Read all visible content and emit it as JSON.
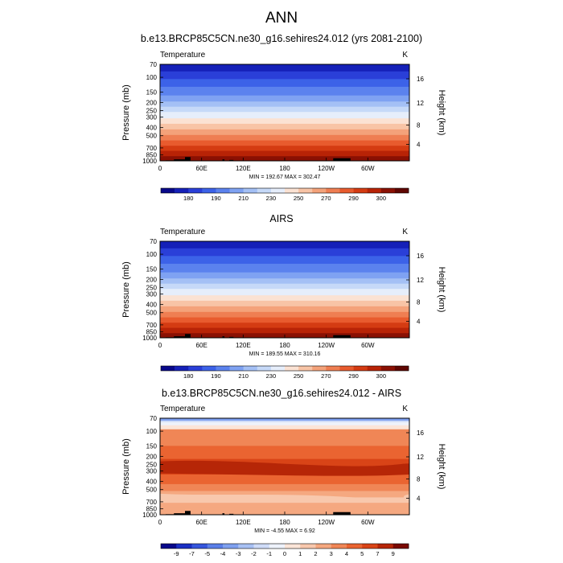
{
  "figure": {
    "main_title": "ANN"
  },
  "chart_data": [
    {
      "type": "heatmap",
      "title": "b.e13.BRCP85C5CN.ne30_g16.sehires24.012 (yrs 2081-2100)",
      "variable_label": "Temperature",
      "units": "K",
      "ylabel": "Pressure (mb)",
      "ylabel_right": "Height (km)",
      "pressure_ticks": [
        "70",
        "100",
        "150",
        "200",
        "250",
        "300",
        "400",
        "500",
        "700",
        "850",
        "1000"
      ],
      "pressure_values": [
        70,
        100,
        150,
        200,
        250,
        300,
        400,
        500,
        700,
        850,
        1000
      ],
      "height_ticks": [
        "16",
        "12",
        "8",
        "4"
      ],
      "x_ticks": [
        "0",
        "60E",
        "120E",
        "180",
        "120W",
        "60W"
      ],
      "x_values": [
        0,
        60,
        120,
        180,
        240,
        300
      ],
      "xlim": [
        0,
        360
      ],
      "ylim": [
        1000,
        70
      ],
      "stats": "MIN = 192.67  MAX = 302.47",
      "colorbar": {
        "labels": [
          "180",
          "190",
          "210",
          "230",
          "250",
          "270",
          "290",
          "300"
        ],
        "colors": [
          "#08088a",
          "#1520b8",
          "#2a3fd8",
          "#3c62e8",
          "#5b82ee",
          "#7fa2f2",
          "#a4c0f5",
          "#c6d9f8",
          "#e6eefb",
          "#fbe2d3",
          "#f8c4a6",
          "#f4a27a",
          "#ef7e52",
          "#e85b2e",
          "#d43b12",
          "#b82306",
          "#8a1003",
          "#5f0601"
        ]
      }
    },
    {
      "type": "heatmap",
      "title": "AIRS",
      "variable_label": "Temperature",
      "units": "K",
      "ylabel": "Pressure (mb)",
      "ylabel_right": "Height (km)",
      "pressure_ticks": [
        "70",
        "100",
        "150",
        "200",
        "250",
        "300",
        "400",
        "500",
        "700",
        "850",
        "1000"
      ],
      "pressure_values": [
        70,
        100,
        150,
        200,
        250,
        300,
        400,
        500,
        700,
        850,
        1000
      ],
      "height_ticks": [
        "16",
        "12",
        "8",
        "4"
      ],
      "x_ticks": [
        "0",
        "60E",
        "120E",
        "180",
        "120W",
        "60W"
      ],
      "x_values": [
        0,
        60,
        120,
        180,
        240,
        300
      ],
      "xlim": [
        0,
        360
      ],
      "ylim": [
        1000,
        70
      ],
      "stats": "MIN = 189.55  MAX = 310.16",
      "colorbar": {
        "labels": [
          "180",
          "190",
          "210",
          "230",
          "250",
          "270",
          "290",
          "300"
        ],
        "colors": [
          "#08088a",
          "#1520b8",
          "#2a3fd8",
          "#3c62e8",
          "#5b82ee",
          "#7fa2f2",
          "#a4c0f5",
          "#c6d9f8",
          "#e6eefb",
          "#fbe2d3",
          "#f8c4a6",
          "#f4a27a",
          "#ef7e52",
          "#e85b2e",
          "#d43b12",
          "#b82306",
          "#8a1003",
          "#5f0601"
        ]
      }
    },
    {
      "type": "heatmap",
      "title": "b.e13.BRCP85C5CN.ne30_g16.sehires24.012 - AIRS",
      "variable_label": "Temperature",
      "units": "K",
      "ylabel": "Pressure (mb)",
      "ylabel_right": "Height (km)",
      "pressure_ticks": [
        "70",
        "100",
        "150",
        "200",
        "250",
        "300",
        "400",
        "500",
        "700",
        "850",
        "1000"
      ],
      "pressure_values": [
        70,
        100,
        150,
        200,
        250,
        300,
        400,
        500,
        700,
        850,
        1000
      ],
      "height_ticks": [
        "16",
        "12",
        "8",
        "4"
      ],
      "x_ticks": [
        "0",
        "60E",
        "120E",
        "180",
        "120W",
        "60W"
      ],
      "x_values": [
        0,
        60,
        120,
        180,
        240,
        300
      ],
      "xlim": [
        0,
        360
      ],
      "ylim": [
        1000,
        70
      ],
      "stats": "MIN = -4.55  MAX =  6.92",
      "colorbar": {
        "labels": [
          "-9",
          "-7",
          "-5",
          "-4",
          "-3",
          "-2",
          "-1",
          "0",
          "1",
          "2",
          "3",
          "4",
          "5",
          "7",
          "9"
        ],
        "colors": [
          "#08088a",
          "#1a2fc4",
          "#3556dd",
          "#5a7fe8",
          "#7fa0ef",
          "#a8c1f4",
          "#cfdcf8",
          "#eef2fb",
          "#fbe5d8",
          "#f8c8ad",
          "#f5a880",
          "#f08656",
          "#ea6431",
          "#d94417",
          "#b62607",
          "#7a0a02"
        ]
      }
    }
  ]
}
